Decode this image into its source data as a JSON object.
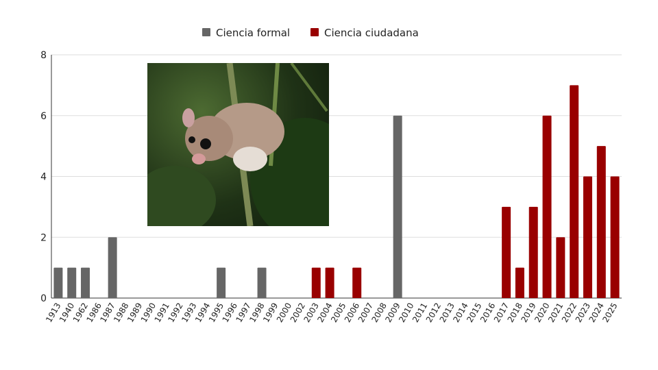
{
  "chart_data": {
    "type": "bar",
    "categories": [
      "1913",
      "1940",
      "1962",
      "1986",
      "1987",
      "1988",
      "1989",
      "1990",
      "1991",
      "1992",
      "1993",
      "1994",
      "1995",
      "1996",
      "1997",
      "1998",
      "1999",
      "2000",
      "2002",
      "2003",
      "2004",
      "2005",
      "2006",
      "2007",
      "2008",
      "2009",
      "2010",
      "2011",
      "2012",
      "2013",
      "2014",
      "2015",
      "2016",
      "2017",
      "2018",
      "2019",
      "2020",
      "2021",
      "2022",
      "2023",
      "2024",
      "2025"
    ],
    "series": [
      {
        "name": "Ciencia formal",
        "color": "#666666",
        "values": [
          1,
          1,
          1,
          0,
          2,
          0,
          0,
          0,
          0,
          0,
          0,
          0,
          1,
          0,
          0,
          1,
          0,
          0,
          0,
          0,
          0,
          0,
          0,
          0,
          0,
          6,
          0,
          0,
          0,
          0,
          0,
          0,
          0,
          0,
          0,
          0,
          0,
          0,
          0,
          0,
          0,
          0
        ]
      },
      {
        "name": "Ciencia ciudadana",
        "color": "#990000",
        "values": [
          0,
          0,
          0,
          0,
          0,
          0,
          0,
          0,
          0,
          0,
          0,
          0,
          0,
          0,
          0,
          0,
          0,
          0,
          0,
          1,
          1,
          0,
          1,
          0,
          0,
          0,
          0,
          0,
          0,
          0,
          0,
          0,
          0,
          3,
          1,
          3,
          6,
          2,
          7,
          4,
          5,
          4
        ]
      }
    ],
    "ylim": [
      0,
      8
    ],
    "yticks": [
      "0",
      "2",
      "4",
      "6",
      "8"
    ],
    "grid": true,
    "legend_position": "top",
    "xlabel": "",
    "ylabel": "",
    "title": ""
  },
  "image": {
    "subject": "opossum-photo"
  }
}
